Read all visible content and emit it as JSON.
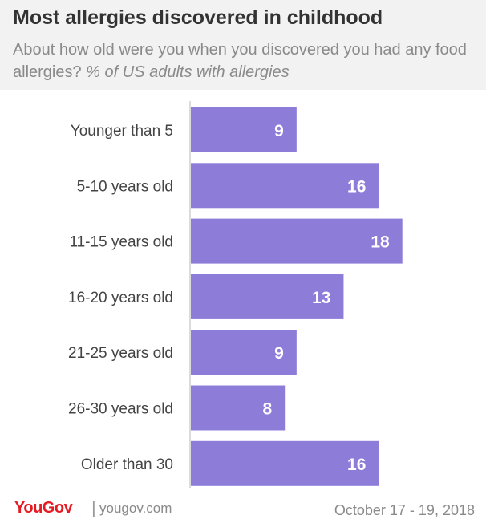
{
  "header": {
    "title": "Most allergies discovered in childhood",
    "subtitle": "About how old were you when you discovered you had any food allergies?",
    "subtitle_note": "% of US adults with allergies"
  },
  "footer": {
    "brand": "YouGov",
    "separator": "|",
    "url": "yougov.com",
    "date": "October 17 - 19, 2018"
  },
  "colors": {
    "bar": "#8e7cd9",
    "brand": "#e51b23",
    "header_bg": "#f2f2f2"
  },
  "chart_data": {
    "type": "bar",
    "orientation": "horizontal",
    "categories": [
      "Younger than 5",
      "5-10 years old",
      "11-15 years old",
      "16-20 years old",
      "21-25 years old",
      "26-30 years old",
      "Older than 30"
    ],
    "values": [
      9,
      16,
      18,
      13,
      9,
      8,
      16
    ],
    "data_labels": true,
    "grid": false
  }
}
